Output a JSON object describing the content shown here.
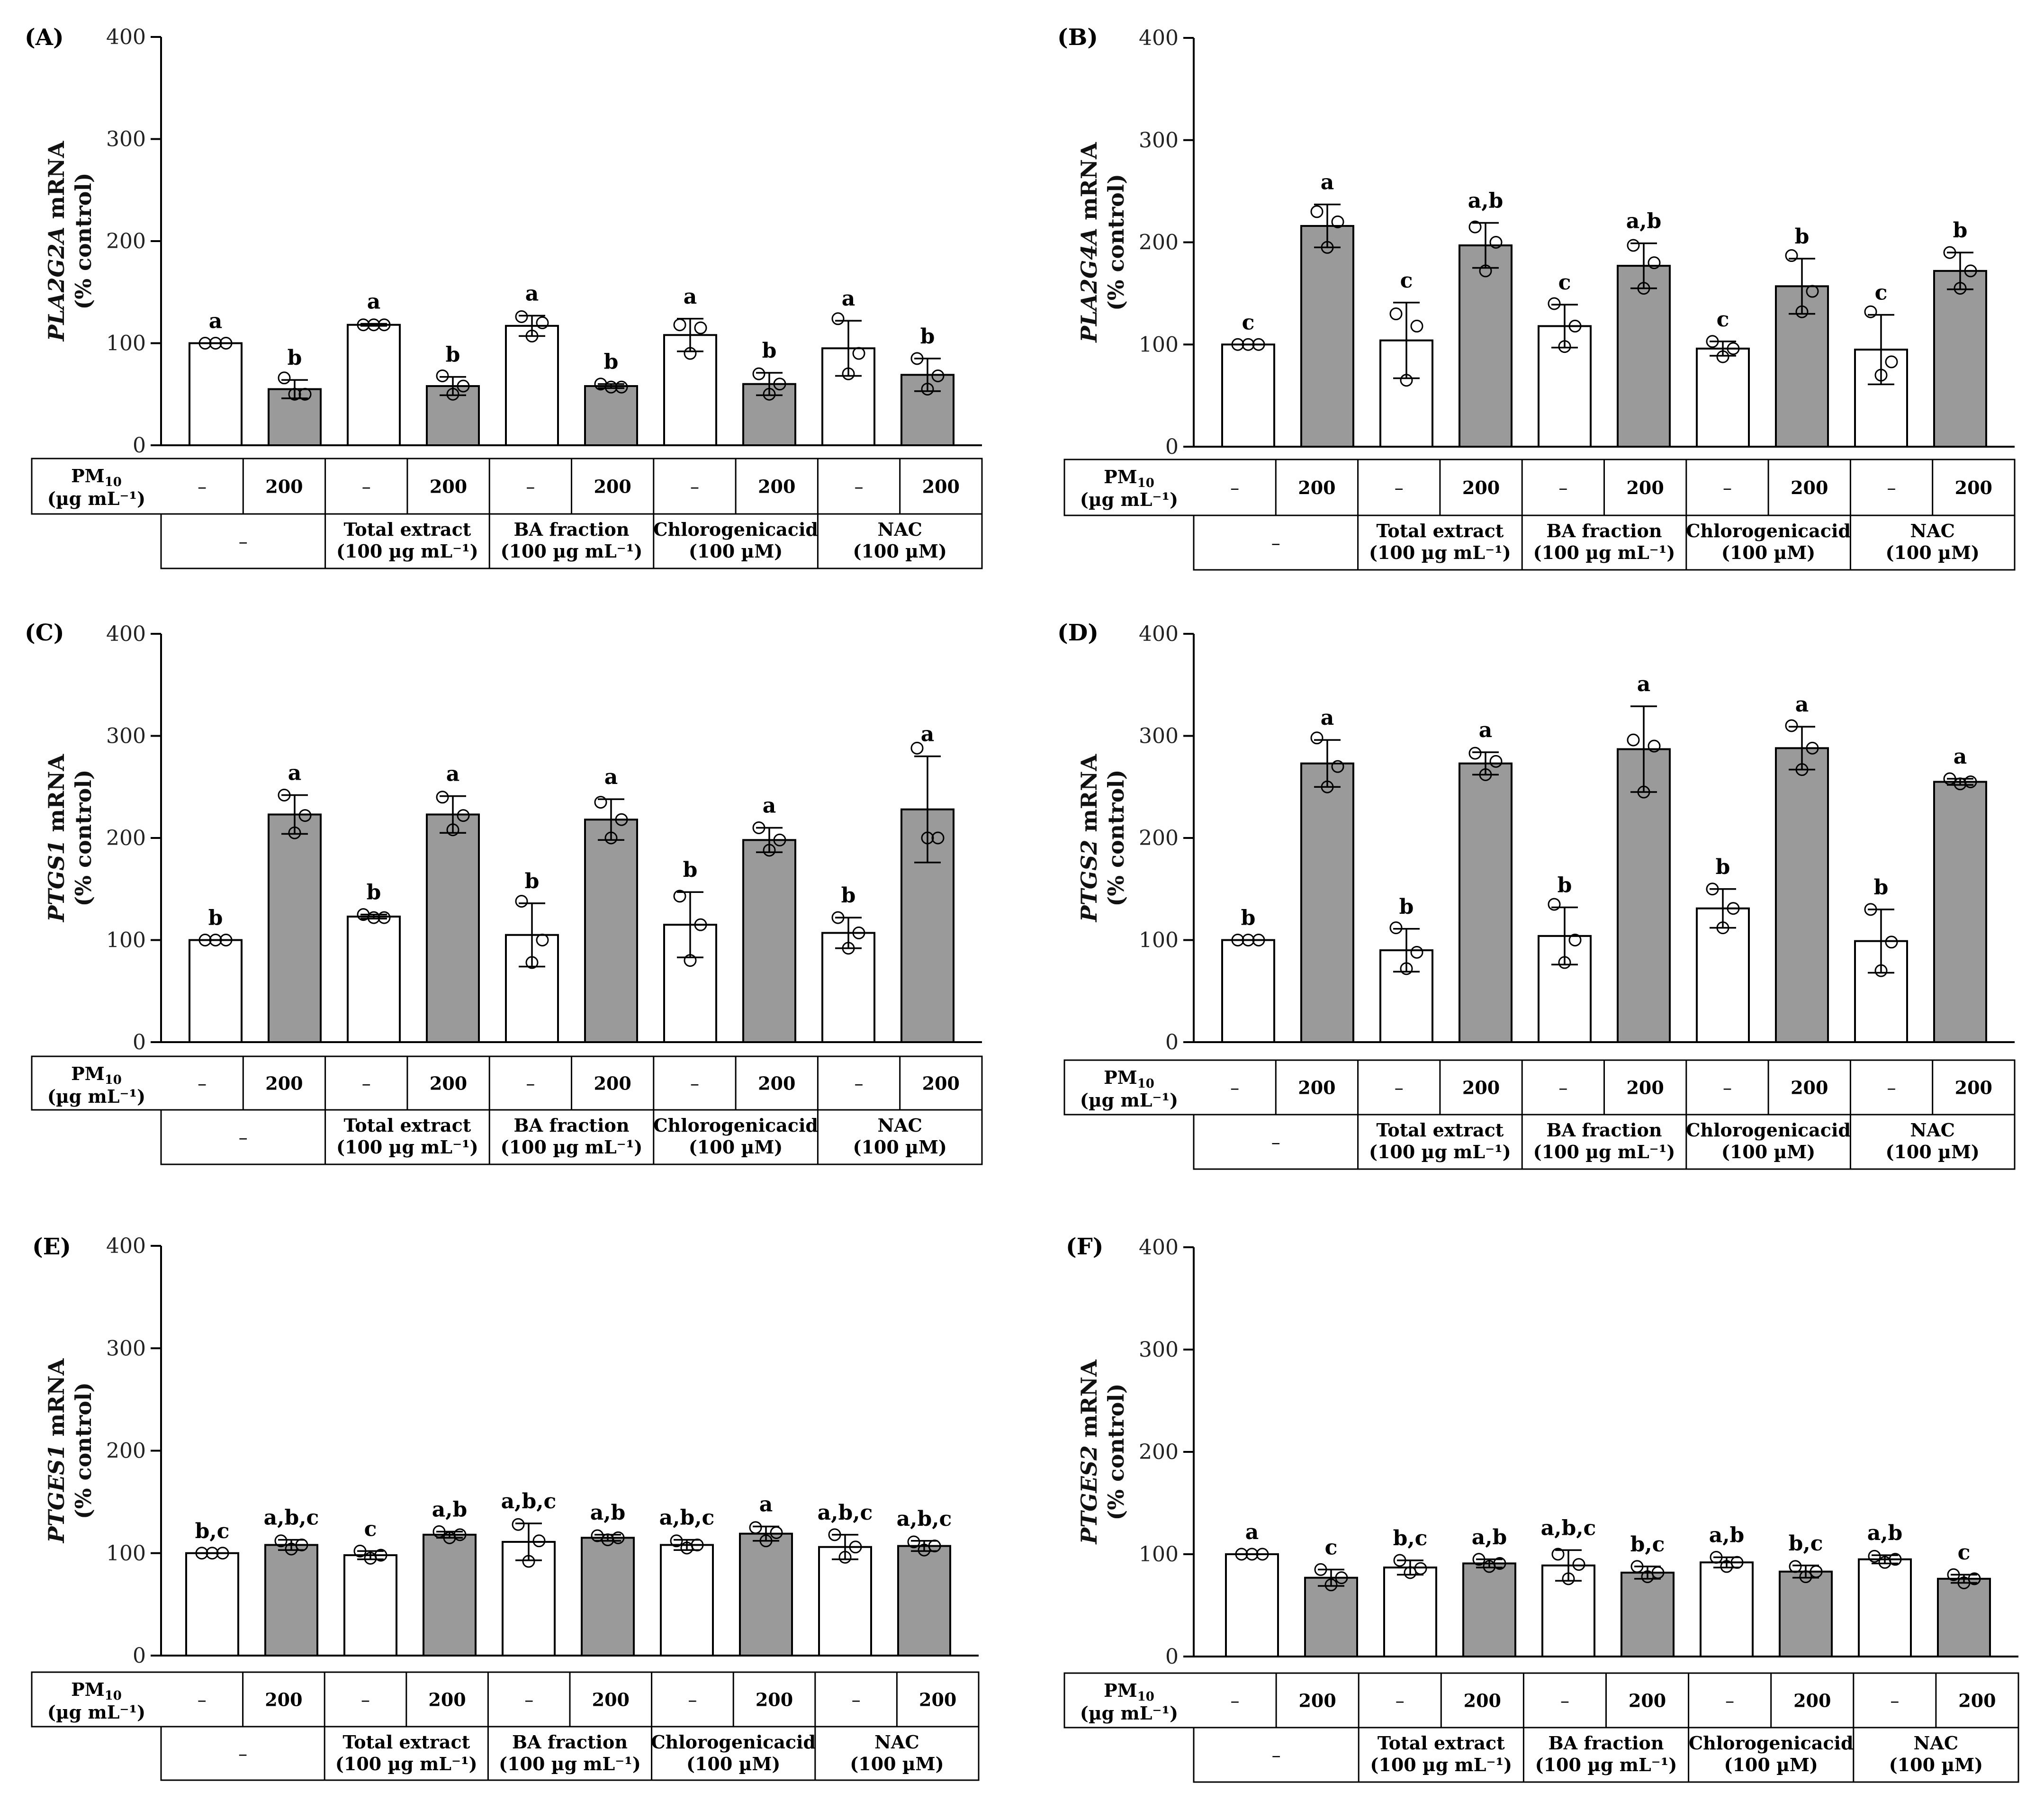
{
  "chart_data": [
    {
      "panel": "(A)",
      "type": "bar",
      "gene": "PLA2G2A",
      "ylabel_suffix": " mRNA",
      "ylabel2": "(% control)",
      "ylim": [
        0,
        400
      ],
      "yticks": [
        "0",
        "100",
        "200",
        "300",
        "400"
      ],
      "values": [
        100,
        55,
        118,
        58,
        117,
        58,
        108,
        60,
        95,
        69
      ],
      "errors": [
        0,
        9,
        1,
        9,
        10,
        2,
        16,
        11,
        27,
        16
      ],
      "points": [
        [
          100,
          100,
          100
        ],
        [
          66,
          50,
          50
        ],
        [
          118,
          118,
          118
        ],
        [
          68,
          50,
          58
        ],
        [
          126,
          107,
          120
        ],
        [
          60,
          57,
          57
        ],
        [
          118,
          90,
          115
        ],
        [
          70,
          50,
          60
        ],
        [
          124,
          70,
          90
        ],
        [
          85,
          55,
          68
        ]
      ],
      "letters": [
        "a",
        "b",
        "a",
        "b",
        "a",
        "b",
        "a",
        "b",
        "a",
        "b"
      ]
    },
    {
      "panel": "(B)",
      "type": "bar",
      "gene": "PLA2G4A",
      "ylabel_suffix": " mRNA",
      "ylabel2": "(% control)",
      "ylim": [
        0,
        400
      ],
      "yticks": [
        "0",
        "100",
        "200",
        "300",
        "400"
      ],
      "values": [
        100,
        216,
        104,
        197,
        118,
        177,
        96,
        157,
        95,
        172
      ],
      "errors": [
        0,
        21,
        37,
        22,
        21,
        22,
        7,
        27,
        34,
        18
      ],
      "points": [
        [
          100,
          100,
          100
        ],
        [
          230,
          195,
          220
        ],
        [
          130,
          65,
          118
        ],
        [
          215,
          172,
          200
        ],
        [
          140,
          98,
          118
        ],
        [
          197,
          155,
          180
        ],
        [
          103,
          88,
          96
        ],
        [
          187,
          132,
          152
        ],
        [
          132,
          70,
          83
        ],
        [
          190,
          155,
          172
        ]
      ],
      "letters": [
        "c",
        "a",
        "c",
        "a,b",
        "c",
        "a,b",
        "c",
        "b",
        "c",
        "b"
      ]
    },
    {
      "panel": "(C)",
      "type": "bar",
      "gene": "PTGS1",
      "ylabel_suffix": " mRNA",
      "ylabel2": "(% control)",
      "ylim": [
        0,
        400
      ],
      "yticks": [
        "0",
        "100",
        "200",
        "300",
        "400"
      ],
      "values": [
        100,
        223,
        123,
        223,
        105,
        218,
        115,
        198,
        107,
        228
      ],
      "errors": [
        0,
        19,
        2,
        18,
        31,
        20,
        32,
        12,
        15,
        52
      ],
      "points": [
        [
          100,
          100,
          100
        ],
        [
          242,
          205,
          222
        ],
        [
          125,
          122,
          122
        ],
        [
          240,
          208,
          222
        ],
        [
          138,
          78,
          100
        ],
        [
          235,
          200,
          218
        ],
        [
          143,
          80,
          115
        ],
        [
          210,
          188,
          198
        ],
        [
          122,
          92,
          107
        ],
        [
          288,
          200,
          200
        ]
      ],
      "letters": [
        "b",
        "a",
        "b",
        "a",
        "b",
        "a",
        "b",
        "a",
        "b",
        "a"
      ]
    },
    {
      "panel": "(D)",
      "type": "bar",
      "gene": "PTGS2",
      "ylabel_suffix": " mRNA",
      "ylabel2": "(% control)",
      "ylim": [
        0,
        400
      ],
      "yticks": [
        "0",
        "100",
        "200",
        "300",
        "400"
      ],
      "values": [
        100,
        273,
        90,
        273,
        104,
        287,
        131,
        288,
        99,
        255
      ],
      "errors": [
        0,
        23,
        21,
        11,
        28,
        42,
        19,
        21,
        31,
        3
      ],
      "points": [
        [
          100,
          100,
          100
        ],
        [
          298,
          250,
          270
        ],
        [
          112,
          72,
          88
        ],
        [
          283,
          262,
          275
        ],
        [
          135,
          78,
          100
        ],
        [
          296,
          245,
          290
        ],
        [
          150,
          112,
          131
        ],
        [
          310,
          267,
          288
        ],
        [
          130,
          70,
          98
        ],
        [
          258,
          253,
          255
        ]
      ],
      "letters": [
        "b",
        "a",
        "b",
        "a",
        "b",
        "a",
        "b",
        "a",
        "b",
        "a"
      ]
    },
    {
      "panel": "(E)",
      "type": "bar",
      "gene": "PTGES1",
      "ylabel_suffix": " mRNA",
      "ylabel2": "(% control)",
      "ylim": [
        0,
        400
      ],
      "yticks": [
        "0",
        "100",
        "200",
        "300",
        "400"
      ],
      "values": [
        100,
        108,
        98,
        118,
        111,
        115,
        108,
        119,
        106,
        107
      ],
      "errors": [
        0,
        5,
        4,
        3,
        18,
        3,
        5,
        7,
        12,
        5
      ],
      "points": [
        [
          100,
          100,
          100
        ],
        [
          112,
          104,
          108
        ],
        [
          102,
          95,
          98
        ],
        [
          121,
          115,
          118
        ],
        [
          128,
          92,
          112
        ],
        [
          117,
          113,
          115
        ],
        [
          112,
          105,
          108
        ],
        [
          125,
          112,
          120
        ],
        [
          118,
          96,
          106
        ],
        [
          111,
          103,
          107
        ]
      ],
      "letters": [
        "b,c",
        "a,b,c",
        "c",
        "a,b",
        "a,b,c",
        "a,b",
        "a,b,c",
        "a",
        "a,b,c",
        "a,b,c"
      ]
    },
    {
      "panel": "(F)",
      "type": "bar",
      "gene": "PTGES2",
      "ylabel_suffix": " mRNA",
      "ylabel2": "(% control)",
      "ylim": [
        0,
        400
      ],
      "yticks": [
        "0",
        "100",
        "200",
        "300",
        "400"
      ],
      "values": [
        100,
        77,
        87,
        91,
        89,
        82,
        92,
        83,
        95,
        76
      ],
      "errors": [
        0,
        8,
        7,
        4,
        15,
        6,
        5,
        6,
        4,
        4
      ],
      "points": [
        [
          100,
          100,
          100
        ],
        [
          85,
          70,
          77
        ],
        [
          94,
          82,
          86
        ],
        [
          95,
          88,
          91
        ],
        [
          100,
          76,
          90
        ],
        [
          88,
          78,
          82
        ],
        [
          97,
          88,
          92
        ],
        [
          88,
          78,
          83
        ],
        [
          98,
          92,
          95
        ],
        [
          80,
          72,
          76
        ]
      ],
      "letters": [
        "a",
        "c",
        "b,c",
        "a,b",
        "a,b,c",
        "b,c",
        "a,b",
        "b,c",
        "a,b",
        "c"
      ]
    }
  ],
  "table": {
    "pm_label": "PM",
    "pm_sub": "10",
    "pm_unit": "(µg mL⁻¹)",
    "pm_values": [
      "–",
      "200",
      "–",
      "200",
      "–",
      "200",
      "–",
      "200",
      "–",
      "200"
    ],
    "treatment_none": "–",
    "treatments": [
      {
        "line1": "Total extract",
        "line2": "(100 µg mL⁻¹)"
      },
      {
        "line1": "BA fraction",
        "line2": "(100 µg mL⁻¹)"
      },
      {
        "line1": "Chlorogenicacid",
        "line2": "(100 µM)"
      },
      {
        "line1": "NAC",
        "line2": "(100 µM)"
      }
    ]
  }
}
